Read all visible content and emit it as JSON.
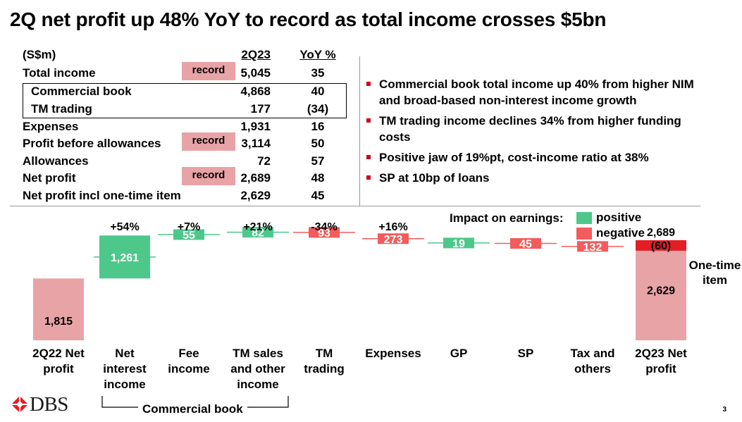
{
  "title": "2Q net profit up 48% YoY to record as total income crosses $5bn",
  "table": {
    "unit": "(S$m)",
    "col_2q": "2Q23",
    "col_yoy": "YoY %",
    "rows": [
      {
        "label": "Total income",
        "value": "5,045",
        "yoy": "35",
        "record": "record"
      },
      {
        "label": "Commercial book",
        "value": "4,868",
        "yoy": "40"
      },
      {
        "label": "TM trading",
        "value": "177",
        "yoy": "(34)"
      },
      {
        "label": "Expenses",
        "value": "1,931",
        "yoy": "16"
      },
      {
        "label": "Profit before allowances",
        "value": "3,114",
        "yoy": "50",
        "record": "record"
      },
      {
        "label": "Allowances",
        "value": "72",
        "yoy": "57"
      },
      {
        "label": "Net profit",
        "value": "2,689",
        "yoy": "48",
        "record": "record"
      },
      {
        "label": "Net profit incl one-time item",
        "value": "2,629",
        "yoy": "45"
      }
    ]
  },
  "bullets": [
    "Commercial book total income up 40% from higher NIM and broad-based non-interest income growth",
    "TM trading income declines 34% from higher funding costs",
    "Positive jaw of 19%pt, cost-income ratio at 38%",
    "SP at 10bp of loans"
  ],
  "legend": {
    "title": "Impact on earnings:",
    "positive": "positive",
    "negative": "negative"
  },
  "colors": {
    "positive": "#4dc88a",
    "negative": "#f25c5c",
    "total": "#e8a3a7",
    "onetime": "#e31e24",
    "accent": "#d0021b"
  },
  "chart_data": {
    "type": "bar",
    "subtype": "waterfall",
    "categories": [
      "2Q22 Net profit",
      "Net interest income",
      "Fee income",
      "TM sales and other income",
      "TM trading",
      "Expenses",
      "GP",
      "SP",
      "Tax and others",
      "2Q23 Net profit"
    ],
    "category_lines": [
      [
        "2Q22 Net",
        "profit"
      ],
      [
        "Net",
        "interest",
        "income"
      ],
      [
        "Fee",
        "income"
      ],
      [
        "TM sales",
        "and other",
        "income"
      ],
      [
        "TM",
        "trading"
      ],
      [
        "Expenses"
      ],
      [
        "GP"
      ],
      [
        "SP"
      ],
      [
        "Tax and",
        "others"
      ],
      [
        "2Q23 Net",
        "profit"
      ]
    ],
    "steps": [
      {
        "kind": "total",
        "value": 1815,
        "label": "1,815"
      },
      {
        "kind": "positive",
        "value": 1261,
        "label": "1,261",
        "change": "+54%"
      },
      {
        "kind": "positive",
        "value": 55,
        "label": "55",
        "change": "+7%"
      },
      {
        "kind": "positive",
        "value": 82,
        "label": "82",
        "change": "+21%"
      },
      {
        "kind": "negative",
        "value": 93,
        "label": "93",
        "change": "-34%"
      },
      {
        "kind": "negative",
        "value": 273,
        "label": "273",
        "change": "+16%"
      },
      {
        "kind": "positive",
        "value": 19,
        "label": "19"
      },
      {
        "kind": "negative",
        "value": 45,
        "label": "45"
      },
      {
        "kind": "negative",
        "value": 132,
        "label": "132"
      },
      {
        "kind": "total",
        "value": 2629,
        "label": "2,629",
        "top_label": "2,689"
      }
    ],
    "onetime": {
      "value": 60,
      "label": "(60)",
      "text_lines": [
        "One-time",
        "item"
      ]
    },
    "group": {
      "label": "Commercial book",
      "spans": [
        "Net interest income",
        "TM sales and other income"
      ]
    }
  },
  "footer": {
    "logo": "DBS",
    "page": "3"
  }
}
